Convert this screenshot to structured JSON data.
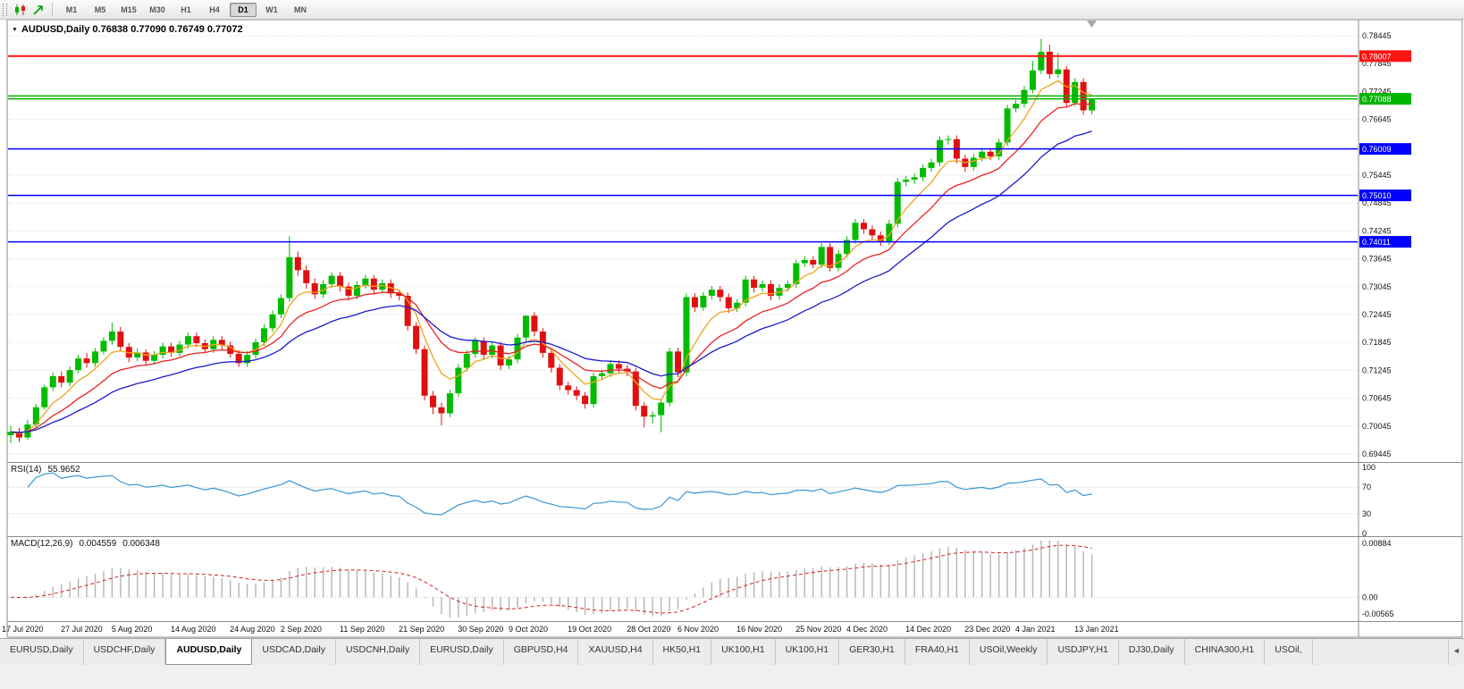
{
  "toolbar": {
    "timeframes": [
      "M1",
      "M5",
      "M15",
      "M30",
      "H1",
      "H4",
      "D1",
      "W1",
      "MN"
    ],
    "active_timeframe": "D1"
  },
  "icons": {
    "ohlc_dropdown": "▼",
    "tab_scroll_left": "◄"
  },
  "chart": {
    "symbol": "AUDUSD,Daily",
    "ohlc": "0.76838 0.77090 0.76749 0.77072",
    "open": "0.76838",
    "high": "0.77090",
    "low": "0.76749",
    "close": "0.77072"
  },
  "chart_data": {
    "type": "candlestick",
    "symbol": "AUDUSD",
    "timeframe": "Daily",
    "up_color": "#00bb00",
    "down_color": "#e01010",
    "y_ticks": [
      0.78445,
      0.77845,
      0.77245,
      0.76645,
      0.76045,
      0.75445,
      0.74845,
      0.74245,
      0.73645,
      0.73045,
      0.72445,
      0.71845,
      0.71245,
      0.70645,
      0.70045,
      0.69445
    ],
    "x_labels": [
      {
        "text": "17 Jul 2020",
        "bar": 0
      },
      {
        "text": "27 Jul 2020",
        "bar": 7
      },
      {
        "text": "5 Aug 2020",
        "bar": 13
      },
      {
        "text": "14 Aug 2020",
        "bar": 20
      },
      {
        "text": "24 Aug 2020",
        "bar": 27
      },
      {
        "text": "2 Sep 2020",
        "bar": 33
      },
      {
        "text": "11 Sep 2020",
        "bar": 40
      },
      {
        "text": "21 Sep 2020",
        "bar": 47
      },
      {
        "text": "30 Sep 2020",
        "bar": 54
      },
      {
        "text": "9 Oct 2020",
        "bar": 60
      },
      {
        "text": "19 Oct 2020",
        "bar": 67
      },
      {
        "text": "28 Oct 2020",
        "bar": 74
      },
      {
        "text": "6 Nov 2020",
        "bar": 80
      },
      {
        "text": "16 Nov 2020",
        "bar": 87
      },
      {
        "text": "25 Nov 2020",
        "bar": 94
      },
      {
        "text": "4 Dec 2020",
        "bar": 100
      },
      {
        "text": "14 Dec 2020",
        "bar": 107
      },
      {
        "text": "23 Dec 2020",
        "bar": 114
      },
      {
        "text": "4 Jan 2021",
        "bar": 120
      },
      {
        "text": "13 Jan 2021",
        "bar": 127
      }
    ],
    "price_lines": [
      {
        "price": 0.78007,
        "color": "#ff1414",
        "label": "0.78007",
        "width": 2
      },
      {
        "price": 0.7715,
        "color": "#00b400",
        "label": null,
        "width": 1.5
      },
      {
        "price": 0.77088,
        "color": "#00b400",
        "label": "0.77088",
        "width": 1.5
      },
      {
        "price": 0.76009,
        "color": "#0000ff",
        "label": "0.76009",
        "width": 1.5
      },
      {
        "price": 0.7501,
        "color": "#0000ff",
        "label": "0.75010",
        "width": 1.5
      },
      {
        "price": 0.74011,
        "color": "#0000ff",
        "label": "0.74011",
        "width": 1.5
      }
    ],
    "moving_averages": [
      {
        "name": "ma-fast-orange",
        "period": 6,
        "color": "#efa41d"
      },
      {
        "name": "ma-medium-red",
        "period": 13,
        "color": "#e82222"
      },
      {
        "name": "ma-slow-blue",
        "period": 24,
        "color": "#1a1acd"
      }
    ],
    "candles": [
      [
        0.6985,
        0.7005,
        0.6968,
        0.6992
      ],
      [
        0.6992,
        0.7001,
        0.697,
        0.698
      ],
      [
        0.698,
        0.7018,
        0.6975,
        0.7008
      ],
      [
        0.7008,
        0.7052,
        0.7,
        0.7045
      ],
      [
        0.7045,
        0.7094,
        0.704,
        0.7088
      ],
      [
        0.7088,
        0.712,
        0.708,
        0.7112
      ],
      [
        0.7112,
        0.7122,
        0.7088,
        0.7098
      ],
      [
        0.7098,
        0.7133,
        0.709,
        0.7125
      ],
      [
        0.7125,
        0.7158,
        0.7118,
        0.715
      ],
      [
        0.715,
        0.7162,
        0.713,
        0.714
      ],
      [
        0.714,
        0.7172,
        0.7132,
        0.7165
      ],
      [
        0.7165,
        0.7196,
        0.7158,
        0.7188
      ],
      [
        0.7188,
        0.7227,
        0.718,
        0.7208
      ],
      [
        0.7208,
        0.7218,
        0.7165,
        0.7175
      ],
      [
        0.7175,
        0.7183,
        0.7142,
        0.7152
      ],
      [
        0.7152,
        0.7172,
        0.7144,
        0.7163
      ],
      [
        0.7163,
        0.717,
        0.7136,
        0.7145
      ],
      [
        0.7145,
        0.7166,
        0.7138,
        0.7158
      ],
      [
        0.7158,
        0.7184,
        0.715,
        0.7176
      ],
      [
        0.7176,
        0.7184,
        0.7154,
        0.7162
      ],
      [
        0.7162,
        0.7188,
        0.7154,
        0.718
      ],
      [
        0.718,
        0.7206,
        0.7172,
        0.7198
      ],
      [
        0.7198,
        0.7206,
        0.7175,
        0.7183
      ],
      [
        0.7183,
        0.7191,
        0.7162,
        0.717
      ],
      [
        0.717,
        0.7198,
        0.7162,
        0.719
      ],
      [
        0.719,
        0.7198,
        0.717,
        0.7178
      ],
      [
        0.7178,
        0.7186,
        0.7152,
        0.716
      ],
      [
        0.716,
        0.7168,
        0.7132,
        0.714
      ],
      [
        0.714,
        0.7166,
        0.7132,
        0.7158
      ],
      [
        0.7158,
        0.7193,
        0.715,
        0.7185
      ],
      [
        0.7185,
        0.7223,
        0.7177,
        0.7215
      ],
      [
        0.7215,
        0.7253,
        0.7207,
        0.7245
      ],
      [
        0.7245,
        0.7288,
        0.7237,
        0.728
      ],
      [
        0.728,
        0.7413,
        0.7272,
        0.7368
      ],
      [
        0.7368,
        0.738,
        0.7328,
        0.734
      ],
      [
        0.734,
        0.735,
        0.73,
        0.7312
      ],
      [
        0.7312,
        0.7322,
        0.7278,
        0.7288
      ],
      [
        0.7288,
        0.7318,
        0.728,
        0.731
      ],
      [
        0.731,
        0.7336,
        0.7302,
        0.7328
      ],
      [
        0.7328,
        0.7336,
        0.7295,
        0.7305
      ],
      [
        0.7305,
        0.7313,
        0.7275,
        0.7285
      ],
      [
        0.7285,
        0.7316,
        0.7277,
        0.7308
      ],
      [
        0.7308,
        0.733,
        0.73,
        0.7322
      ],
      [
        0.7322,
        0.733,
        0.7288,
        0.7298
      ],
      [
        0.7298,
        0.732,
        0.729,
        0.7312
      ],
      [
        0.7312,
        0.732,
        0.728,
        0.729
      ],
      [
        0.729,
        0.7298,
        0.7275,
        0.7285
      ],
      [
        0.7285,
        0.7292,
        0.721,
        0.722
      ],
      [
        0.722,
        0.7228,
        0.716,
        0.717
      ],
      [
        0.717,
        0.7178,
        0.706,
        0.707
      ],
      [
        0.707,
        0.708,
        0.703,
        0.7045
      ],
      [
        0.7045,
        0.7055,
        0.7006,
        0.7032
      ],
      [
        0.7032,
        0.7083,
        0.7024,
        0.7075
      ],
      [
        0.7075,
        0.7138,
        0.7067,
        0.713
      ],
      [
        0.713,
        0.7168,
        0.7122,
        0.716
      ],
      [
        0.716,
        0.7196,
        0.7152,
        0.7188
      ],
      [
        0.7188,
        0.7196,
        0.7148,
        0.7158
      ],
      [
        0.7158,
        0.7186,
        0.715,
        0.7178
      ],
      [
        0.7178,
        0.7186,
        0.7125,
        0.7135
      ],
      [
        0.7135,
        0.7156,
        0.7127,
        0.7148
      ],
      [
        0.7148,
        0.7203,
        0.714,
        0.7195
      ],
      [
        0.7195,
        0.7243,
        0.7187,
        0.7242
      ],
      [
        0.7242,
        0.725,
        0.7198,
        0.7208
      ],
      [
        0.7208,
        0.7216,
        0.7152,
        0.7162
      ],
      [
        0.7162,
        0.717,
        0.712,
        0.713
      ],
      [
        0.713,
        0.7138,
        0.7082,
        0.7092
      ],
      [
        0.7092,
        0.71,
        0.7072,
        0.7082
      ],
      [
        0.7082,
        0.709,
        0.706,
        0.707
      ],
      [
        0.707,
        0.7078,
        0.7042,
        0.7052
      ],
      [
        0.7052,
        0.712,
        0.7044,
        0.7112
      ],
      [
        0.7112,
        0.7126,
        0.7104,
        0.7118
      ],
      [
        0.7118,
        0.7146,
        0.711,
        0.7138
      ],
      [
        0.7138,
        0.7146,
        0.7118,
        0.7128
      ],
      [
        0.7128,
        0.7136,
        0.7112,
        0.7122
      ],
      [
        0.7122,
        0.713,
        0.7038,
        0.7048
      ],
      [
        0.7048,
        0.7056,
        0.7002,
        0.7025
      ],
      [
        0.7025,
        0.7036,
        0.701,
        0.7028
      ],
      [
        0.7028,
        0.7063,
        0.6991,
        0.7055
      ],
      [
        0.7055,
        0.7173,
        0.7047,
        0.7165
      ],
      [
        0.7165,
        0.7173,
        0.711,
        0.712
      ],
      [
        0.712,
        0.729,
        0.7112,
        0.7282
      ],
      [
        0.7282,
        0.729,
        0.725,
        0.726
      ],
      [
        0.726,
        0.7293,
        0.7252,
        0.7285
      ],
      [
        0.7285,
        0.7306,
        0.7277,
        0.7298
      ],
      [
        0.7298,
        0.7306,
        0.7272,
        0.7282
      ],
      [
        0.7282,
        0.729,
        0.7248,
        0.7258
      ],
      [
        0.7258,
        0.7278,
        0.725,
        0.727
      ],
      [
        0.727,
        0.7328,
        0.7262,
        0.732
      ],
      [
        0.732,
        0.7328,
        0.7292,
        0.7302
      ],
      [
        0.7302,
        0.7318,
        0.7294,
        0.731
      ],
      [
        0.731,
        0.7318,
        0.7275,
        0.7285
      ],
      [
        0.7285,
        0.731,
        0.7277,
        0.7302
      ],
      [
        0.7302,
        0.7318,
        0.7294,
        0.731
      ],
      [
        0.731,
        0.7363,
        0.7302,
        0.7355
      ],
      [
        0.7355,
        0.737,
        0.7347,
        0.7362
      ],
      [
        0.7362,
        0.737,
        0.7344,
        0.7352
      ],
      [
        0.7352,
        0.7398,
        0.7344,
        0.739
      ],
      [
        0.739,
        0.7398,
        0.7337,
        0.7345
      ],
      [
        0.7345,
        0.7383,
        0.7337,
        0.7375
      ],
      [
        0.7375,
        0.7413,
        0.7367,
        0.7405
      ],
      [
        0.7405,
        0.745,
        0.7397,
        0.7442
      ],
      [
        0.7442,
        0.745,
        0.7418,
        0.7428
      ],
      [
        0.7428,
        0.7436,
        0.7405,
        0.7415
      ],
      [
        0.7415,
        0.7423,
        0.7392,
        0.7402
      ],
      [
        0.7402,
        0.7448,
        0.7394,
        0.744
      ],
      [
        0.744,
        0.7538,
        0.7432,
        0.753
      ],
      [
        0.753,
        0.7543,
        0.752,
        0.7535
      ],
      [
        0.7535,
        0.7548,
        0.7525,
        0.754
      ],
      [
        0.754,
        0.7568,
        0.7532,
        0.756
      ],
      [
        0.756,
        0.758,
        0.7552,
        0.7572
      ],
      [
        0.7572,
        0.7628,
        0.7564,
        0.762
      ],
      [
        0.762,
        0.763,
        0.761,
        0.7622
      ],
      [
        0.7622,
        0.763,
        0.757,
        0.758
      ],
      [
        0.758,
        0.7588,
        0.7552,
        0.7562
      ],
      [
        0.7562,
        0.759,
        0.7554,
        0.7582
      ],
      [
        0.7582,
        0.7603,
        0.7574,
        0.7595
      ],
      [
        0.7595,
        0.7603,
        0.7577,
        0.7585
      ],
      [
        0.7585,
        0.7623,
        0.7577,
        0.7615
      ],
      [
        0.7615,
        0.7696,
        0.7607,
        0.7688
      ],
      [
        0.7688,
        0.7706,
        0.768,
        0.7698
      ],
      [
        0.7698,
        0.7736,
        0.769,
        0.7728
      ],
      [
        0.7728,
        0.779,
        0.772,
        0.777
      ],
      [
        0.777,
        0.7838,
        0.7762,
        0.781
      ],
      [
        0.781,
        0.7825,
        0.7752,
        0.7762
      ],
      [
        0.7762,
        0.7808,
        0.7754,
        0.7772
      ],
      [
        0.7772,
        0.778,
        0.7692,
        0.77
      ],
      [
        0.77,
        0.7753,
        0.7692,
        0.7745
      ],
      [
        0.7745,
        0.7753,
        0.7674,
        0.7684
      ],
      [
        0.76838,
        0.7709,
        0.76749,
        0.77072
      ]
    ]
  },
  "rsi": {
    "label": "RSI(14)",
    "value": "55.9652",
    "period": 14,
    "color": "#3c96d2",
    "levels": [
      100,
      70,
      30,
      0
    ]
  },
  "macd": {
    "label": "MACD(12,26,9)",
    "value_main": "0.004559",
    "value_signal": "0.006348",
    "fast": 12,
    "slow": 26,
    "signal": 9,
    "axis_max": "0.00884",
    "axis_zero": "0.00",
    "axis_min": "-0.00565",
    "histogram_color": "#b4b4b4",
    "signal_color": "#d42020"
  },
  "tabs": {
    "items": [
      "EURUSD,Daily",
      "USDCHF,Daily",
      "AUDUSD,Daily",
      "USDCAD,Daily",
      "USDCNH,Daily",
      "EURUSD,Daily",
      "GBPUSD,H4",
      "XAUUSD,H4",
      "HK50,H1",
      "UK100,H1",
      "UK100,H1",
      "GER30,H1",
      "FRA40,H1",
      "USOil,Weekly",
      "USDJPY,H1",
      "DJ30,Daily",
      "CHINA300,H1",
      "USOil,"
    ],
    "active_index": 2
  }
}
